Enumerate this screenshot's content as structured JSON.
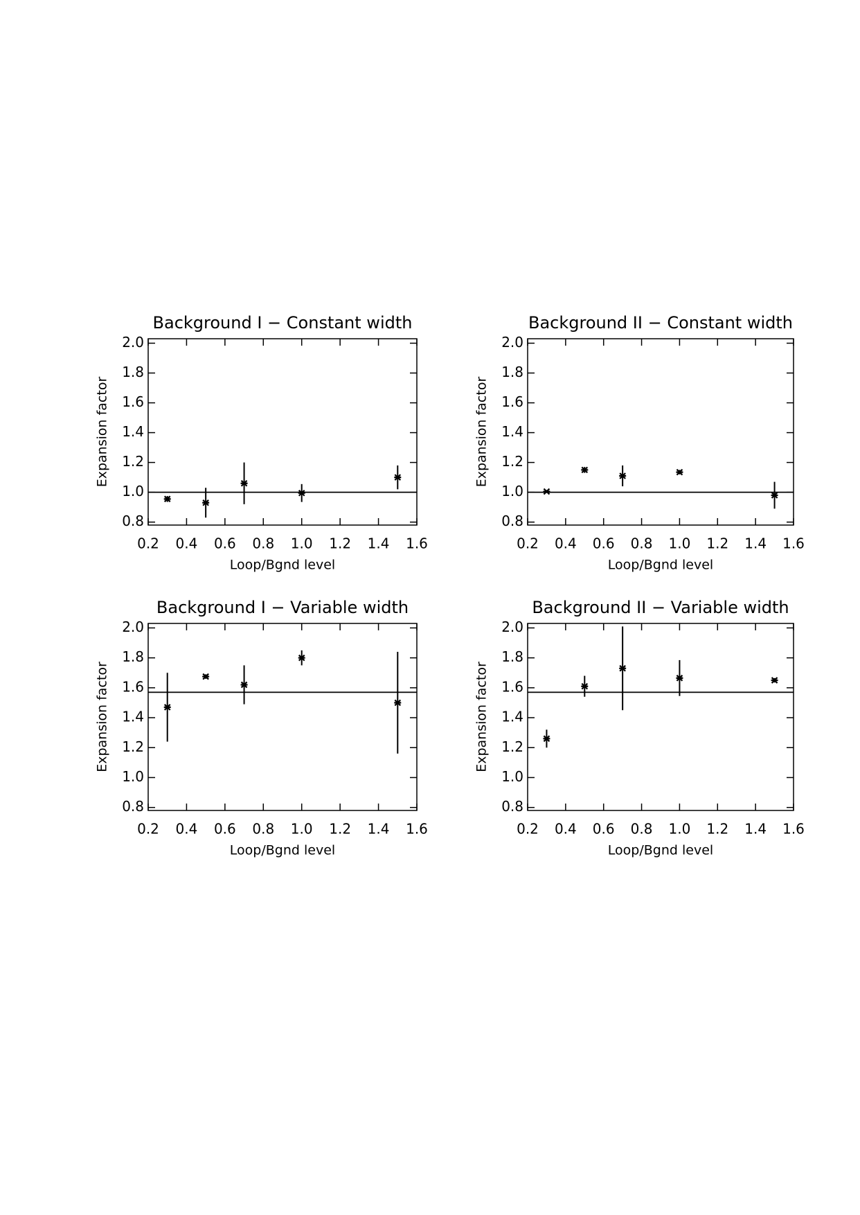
{
  "chart_data": [
    {
      "type": "scatter",
      "title": "Background I − Constant width",
      "xlabel": "Loop/Bgnd level",
      "ylabel": "Expansion factor",
      "x": [
        0.3,
        0.5,
        0.7,
        1.0,
        1.5
      ],
      "values": [
        0.955,
        0.93,
        1.06,
        0.995,
        1.1
      ],
      "errors": [
        0.02,
        0.1,
        0.14,
        0.06,
        0.08
      ],
      "reference_line": 1.0,
      "color": "#000000",
      "xlim": [
        0.2,
        1.6
      ],
      "ylim": [
        0.78,
        2.03
      ],
      "xticks": [
        0.2,
        0.4,
        0.6,
        0.8,
        {
          "value": 1.0,
          "label": "1.0"
        },
        1.2,
        1.4,
        1.6
      ],
      "yticks": [
        0.8,
        {
          "value": 1.0,
          "label": "1.0"
        },
        1.2,
        1.4,
        1.6,
        1.8,
        {
          "value": 2.0,
          "label": "2.0"
        }
      ]
    },
    {
      "type": "scatter",
      "title": "Background II − Constant width",
      "xlabel": "Loop/Bgnd level",
      "ylabel": "Expansion factor",
      "x": [
        0.3,
        0.5,
        0.7,
        1.0,
        1.5
      ],
      "values": [
        1.005,
        1.15,
        1.11,
        1.135,
        0.98
      ],
      "errors": [
        0.01,
        0.02,
        0.07,
        0.015,
        0.09
      ],
      "reference_line": 1.0,
      "color": "#000000",
      "xlim": [
        0.2,
        1.6
      ],
      "ylim": [
        0.78,
        2.03
      ],
      "xticks": [
        0.2,
        0.4,
        0.6,
        0.8,
        {
          "value": 1.0,
          "label": "1.0"
        },
        1.2,
        1.4,
        1.6
      ],
      "yticks": [
        0.8,
        {
          "value": 1.0,
          "label": "1.0"
        },
        1.2,
        1.4,
        1.6,
        1.8,
        {
          "value": 2.0,
          "label": "2.0"
        }
      ]
    },
    {
      "type": "scatter",
      "title": "Background I − Variable width",
      "xlabel": "Loop/Bgnd level",
      "ylabel": "Expansion factor",
      "x": [
        0.3,
        0.5,
        0.7,
        1.0,
        1.5
      ],
      "values": [
        1.47,
        1.675,
        1.62,
        1.8,
        1.5
      ],
      "errors": [
        0.23,
        0.015,
        0.13,
        0.05,
        0.34
      ],
      "reference_line": 1.57,
      "color": "#000000",
      "xlim": [
        0.2,
        1.6
      ],
      "ylim": [
        0.78,
        2.03
      ],
      "xticks": [
        0.2,
        0.4,
        0.6,
        0.8,
        {
          "value": 1.0,
          "label": "1.0"
        },
        1.2,
        1.4,
        1.6
      ],
      "yticks": [
        0.8,
        {
          "value": 1.0,
          "label": "1.0"
        },
        1.2,
        1.4,
        1.6,
        1.8,
        {
          "value": 2.0,
          "label": "2.0"
        }
      ]
    },
    {
      "type": "scatter",
      "title": "Background II − Variable width",
      "xlabel": "Loop/Bgnd level",
      "ylabel": "Expansion factor",
      "x": [
        0.3,
        0.5,
        0.7,
        1.0,
        1.5
      ],
      "values": [
        1.26,
        1.61,
        1.73,
        1.665,
        1.65
      ],
      "errors": [
        0.06,
        0.07,
        0.28,
        0.12,
        0.015
      ],
      "reference_line": 1.57,
      "color": "#000000",
      "xlim": [
        0.2,
        1.6
      ],
      "ylim": [
        0.78,
        2.03
      ],
      "xticks": [
        0.2,
        0.4,
        0.6,
        0.8,
        {
          "value": 1.0,
          "label": "1.0"
        },
        1.2,
        1.4,
        1.6
      ],
      "yticks": [
        0.8,
        {
          "value": 1.0,
          "label": "1.0"
        },
        1.2,
        1.4,
        1.6,
        1.8,
        {
          "value": 2.0,
          "label": "2.0"
        }
      ]
    }
  ]
}
